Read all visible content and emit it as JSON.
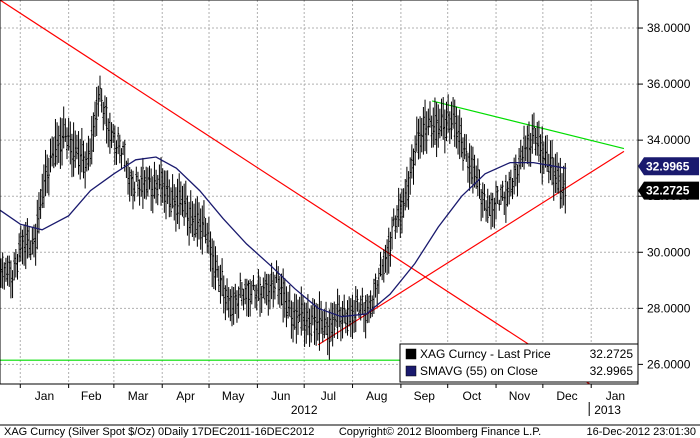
{
  "chart_data": {
    "type": "bar",
    "subtype": "ohlc-daily",
    "x_axis": {
      "months": [
        "Jan",
        "Feb",
        "Mar",
        "Apr",
        "May",
        "Jun",
        "Jul",
        "Aug",
        "Sep",
        "Oct",
        "Nov",
        "Dec",
        "Jan"
      ],
      "year_labels": [
        "2012",
        "2013"
      ]
    },
    "y_axis": {
      "ticks": [
        "26.0000",
        "28.0000",
        "30.0000",
        "32.0000",
        "34.0000",
        "36.0000",
        "38.0000"
      ],
      "range": [
        25.3,
        39.0
      ],
      "side": "right"
    },
    "grid": true,
    "series": [
      {
        "name": "XAG Curncy - Last Price",
        "type": "ohlc",
        "color": "#000000",
        "last_value": 32.2725,
        "last_value_label": "32.2725",
        "weekly_close": [
          [
            "2011-12-19",
            29.4
          ],
          [
            "2011-12-26",
            29.2
          ],
          [
            "2012-01-02",
            30.3
          ],
          [
            "2012-01-09",
            30.2
          ],
          [
            "2012-01-16",
            32.2
          ],
          [
            "2012-01-23",
            33.8
          ],
          [
            "2012-01-30",
            34.0
          ],
          [
            "2012-02-06",
            33.6
          ],
          [
            "2012-02-13",
            33.0
          ],
          [
            "2012-02-20",
            35.6
          ],
          [
            "2012-02-27",
            34.4
          ],
          [
            "2012-03-05",
            33.8
          ],
          [
            "2012-03-12",
            32.6
          ],
          [
            "2012-03-19",
            32.4
          ],
          [
            "2012-03-26",
            32.5
          ],
          [
            "2012-04-02",
            32.2
          ],
          [
            "2012-04-09",
            31.8
          ],
          [
            "2012-04-16",
            31.5
          ],
          [
            "2012-04-23",
            31.0
          ],
          [
            "2012-04-30",
            30.6
          ],
          [
            "2012-05-07",
            29.0
          ],
          [
            "2012-05-14",
            28.2
          ],
          [
            "2012-05-21",
            28.4
          ],
          [
            "2012-05-28",
            28.8
          ],
          [
            "2012-06-04",
            28.5
          ],
          [
            "2012-06-11",
            29.0
          ],
          [
            "2012-06-18",
            28.4
          ],
          [
            "2012-06-25",
            27.6
          ],
          [
            "2012-07-02",
            27.6
          ],
          [
            "2012-07-09",
            27.4
          ],
          [
            "2012-07-16",
            27.3
          ],
          [
            "2012-07-23",
            27.6
          ],
          [
            "2012-07-30",
            27.8
          ],
          [
            "2012-08-06",
            28.0
          ],
          [
            "2012-08-13",
            28.2
          ],
          [
            "2012-08-20",
            29.5
          ],
          [
            "2012-08-27",
            30.8
          ],
          [
            "2012-09-03",
            31.8
          ],
          [
            "2012-09-10",
            33.5
          ],
          [
            "2012-09-17",
            34.6
          ],
          [
            "2012-09-24",
            34.3
          ],
          [
            "2012-10-01",
            34.8
          ],
          [
            "2012-10-08",
            34.2
          ],
          [
            "2012-10-15",
            33.2
          ],
          [
            "2012-10-22",
            32.2
          ],
          [
            "2012-10-29",
            31.5
          ],
          [
            "2012-11-05",
            32.2
          ],
          [
            "2012-11-12",
            32.4
          ],
          [
            "2012-11-19",
            33.8
          ],
          [
            "2012-11-26",
            34.0
          ],
          [
            "2012-12-03",
            33.4
          ],
          [
            "2012-12-10",
            32.5
          ],
          [
            "2012-12-16",
            32.2725
          ]
        ]
      },
      {
        "name": "SMAVG (55) on Close",
        "type": "line",
        "color": "#1a1a6e",
        "last_value": 32.9965,
        "last_value_label": "32.9965",
        "points": [
          [
            "2011-12-19",
            31.5
          ],
          [
            "2012-01-01",
            31.0
          ],
          [
            "2012-01-15",
            30.8
          ],
          [
            "2012-02-01",
            31.3
          ],
          [
            "2012-02-15",
            32.2
          ],
          [
            "2012-03-01",
            32.8
          ],
          [
            "2012-03-15",
            33.3
          ],
          [
            "2012-03-28",
            33.4
          ],
          [
            "2012-04-10",
            33.0
          ],
          [
            "2012-04-25",
            32.2
          ],
          [
            "2012-05-10",
            31.2
          ],
          [
            "2012-05-25",
            30.3
          ],
          [
            "2012-06-10",
            29.5
          ],
          [
            "2012-06-25",
            28.7
          ],
          [
            "2012-07-10",
            28.0
          ],
          [
            "2012-07-25",
            27.7
          ],
          [
            "2012-08-10",
            27.8
          ],
          [
            "2012-08-25",
            28.5
          ],
          [
            "2012-09-10",
            29.6
          ],
          [
            "2012-09-25",
            30.9
          ],
          [
            "2012-10-10",
            32.0
          ],
          [
            "2012-10-25",
            32.8
          ],
          [
            "2012-11-10",
            33.2
          ],
          [
            "2012-11-25",
            33.2
          ],
          [
            "2012-12-16",
            32.9965
          ]
        ]
      }
    ],
    "trend_lines": [
      {
        "color": "#ff0000",
        "from": [
          "2011-12-19",
          39.0
        ],
        "to": [
          "2012-12-31",
          25.3
        ]
      },
      {
        "color": "#ff0000",
        "from": [
          "2012-07-10",
          26.7
        ],
        "to": [
          "2013-01-22",
          33.6
        ]
      },
      {
        "color": "#00dd00",
        "from": [
          "2012-09-21",
          35.4
        ],
        "to": [
          "2013-01-22",
          33.7
        ]
      },
      {
        "color": "#00dd00",
        "from": [
          "2011-12-19",
          26.15
        ],
        "to": [
          "2013-01-31",
          26.15
        ]
      }
    ],
    "legend": {
      "placement": "bottom-right",
      "entries": [
        {
          "label": "XAG Curncy - Last Price",
          "value": "32.2725",
          "swatch": "#000000"
        },
        {
          "label": "SMAVG (55) on Close",
          "value": "32.9965",
          "swatch": "#1a1a6e"
        }
      ]
    }
  },
  "footer": {
    "left": "XAG Curncy (Silver Spot $/Oz) 0Daily 17DEC2011-16DEC2012",
    "center": "Copyright© 2012 Bloomberg Finance L.P.",
    "right": "16-Dec-2012 23:01:30"
  }
}
